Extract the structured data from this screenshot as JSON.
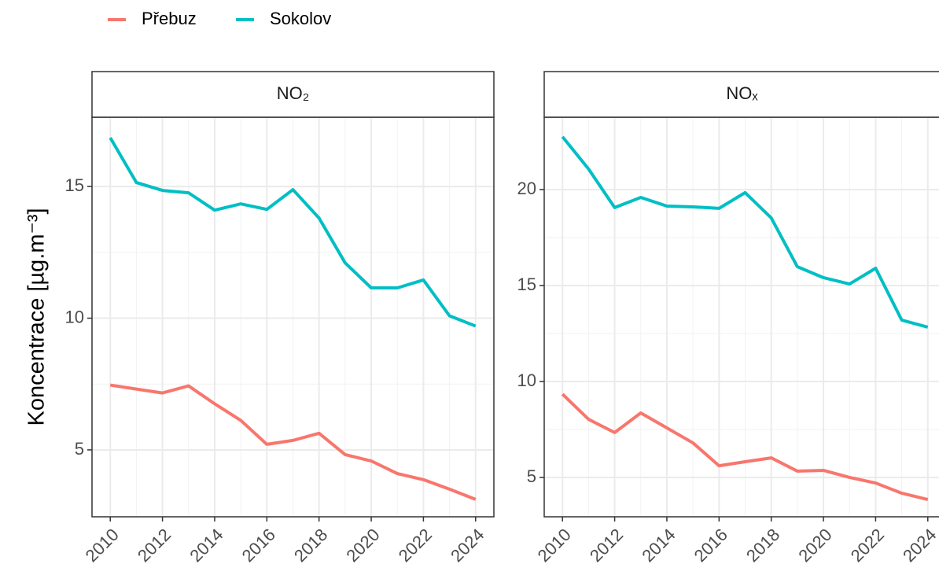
{
  "chart_data": [
    {
      "type": "line",
      "title": "NO₂",
      "ylabel": "Koncentrace [µg.m⁻³]",
      "x": [
        2010,
        2011,
        2012,
        2013,
        2014,
        2015,
        2016,
        2017,
        2018,
        2019,
        2020,
        2021,
        2022,
        2023,
        2024
      ],
      "series": [
        {
          "name": "Přebuz",
          "color": "#F8766D",
          "values": [
            7.46,
            7.31,
            7.16,
            7.43,
            6.75,
            6.12,
            5.21,
            5.36,
            5.63,
            4.82,
            4.58,
            4.1,
            3.87,
            3.51,
            3.12
          ]
        },
        {
          "name": "Sokolov",
          "color": "#00BFC4",
          "values": [
            16.85,
            15.15,
            14.85,
            14.76,
            14.1,
            14.34,
            14.13,
            14.88,
            13.8,
            12.1,
            11.15,
            11.15,
            11.45,
            10.09,
            9.7
          ]
        }
      ],
      "xlim": [
        2009.3,
        2024.7
      ],
      "xticks": [
        2010,
        2012,
        2014,
        2016,
        2018,
        2020,
        2022,
        2024
      ],
      "ylim": [
        2.46,
        17.63
      ],
      "yticks": [
        5,
        10,
        15
      ],
      "grid": true
    },
    {
      "type": "line",
      "title": "NOₓ",
      "x": [
        2010,
        2011,
        2012,
        2013,
        2014,
        2015,
        2016,
        2017,
        2018,
        2019,
        2020,
        2021,
        2022,
        2023,
        2024
      ],
      "series": [
        {
          "name": "Přebuz",
          "color": "#F8766D",
          "values": [
            9.34,
            8.03,
            7.34,
            8.36,
            7.58,
            6.8,
            5.61,
            5.82,
            6.02,
            5.33,
            5.37,
            5.0,
            4.71,
            4.18,
            3.85
          ]
        },
        {
          "name": "Sokolov",
          "color": "#00BFC4",
          "values": [
            22.75,
            21.07,
            19.06,
            19.59,
            19.14,
            19.1,
            19.02,
            19.84,
            18.52,
            15.98,
            15.41,
            15.08,
            15.9,
            13.2,
            12.83
          ]
        }
      ],
      "xlim": [
        2009.3,
        2024.7
      ],
      "xticks": [
        2010,
        2012,
        2014,
        2016,
        2018,
        2020,
        2022,
        2024
      ],
      "ylim": [
        2.95,
        23.77
      ],
      "yticks": [
        5,
        10,
        15,
        20
      ],
      "grid": true
    }
  ]
}
